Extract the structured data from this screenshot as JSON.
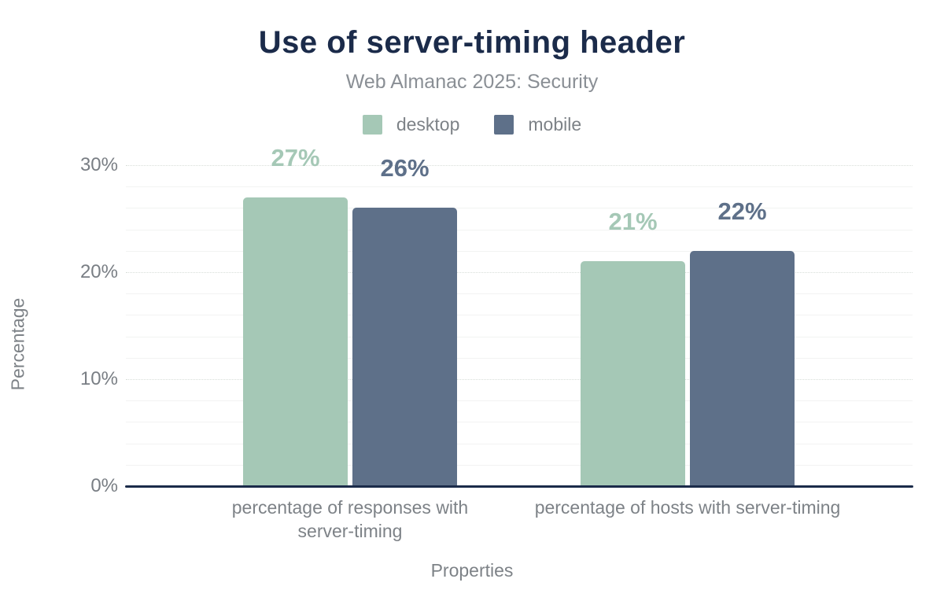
{
  "title": "Use of server-timing header",
  "subtitle": "Web Almanac 2025: Security",
  "colors": {
    "title_navy": "#1b2b4a",
    "subtitle_gray": "#8a8f95",
    "axis_text_gray": "#797e84",
    "desktop_green": "#a5c8b6",
    "mobile_slate": "#5e7089",
    "minor_gridline": "#f2f3f2",
    "major_gridline": "#d8ded9",
    "baseline_navy": "#1b2b4a",
    "background": "#ffffff"
  },
  "legend": {
    "position": "top",
    "items": [
      {
        "label": "desktop",
        "color": "#a5c8b6"
      },
      {
        "label": "mobile",
        "color": "#5e7089"
      }
    ]
  },
  "chart_data": {
    "type": "bar",
    "title": "Use of server-timing header",
    "subtitle": "Web Almanac 2025: Security",
    "xlabel": "Properties",
    "ylabel": "Percentage",
    "categories": [
      "percentage of responses with server-timing",
      "percentage of hosts with server-timing"
    ],
    "series": [
      {
        "name": "desktop",
        "color": "#a5c8b6",
        "values": [
          27,
          21
        ],
        "data_labels": [
          "27%",
          "21%"
        ]
      },
      {
        "name": "mobile",
        "color": "#5e7089",
        "values": [
          26,
          22
        ],
        "data_labels": [
          "26%",
          "22%"
        ]
      }
    ],
    "ylim": [
      0,
      30
    ],
    "yticks": {
      "values": [
        0,
        10,
        20,
        30
      ],
      "labels": [
        "0%",
        "10%",
        "20%",
        "30%"
      ]
    },
    "grid": {
      "horizontal": true,
      "minor_step_pct": 2,
      "major_step_pct": 10,
      "major_style": "dotted"
    },
    "legend_position": "top"
  }
}
